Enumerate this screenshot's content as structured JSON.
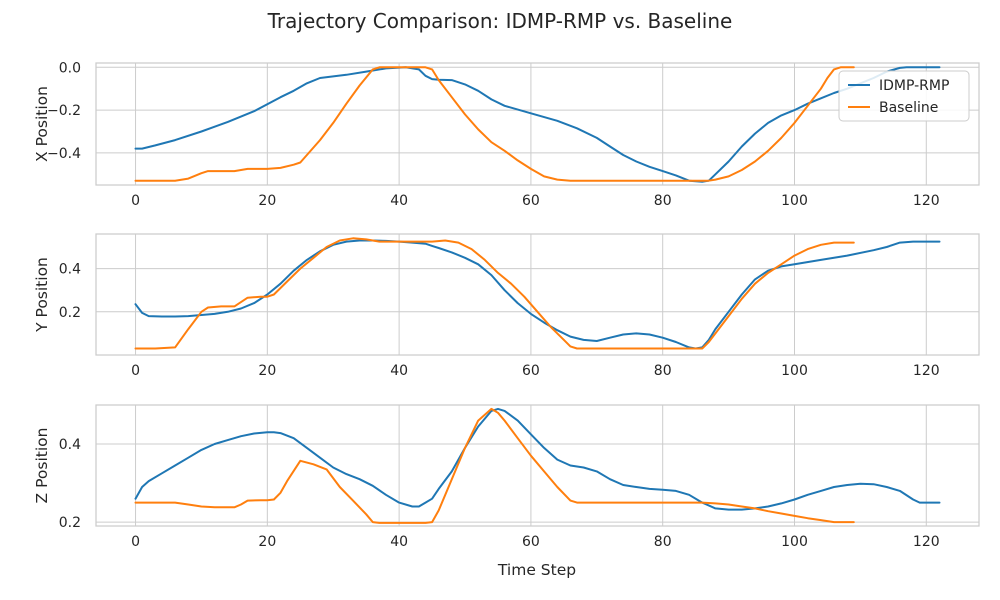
{
  "chart_data": {
    "type": "line",
    "title": "Trajectory Comparison: IDMP-RMP vs. Baseline",
    "xlabel": "Time Step",
    "xlim": [
      -6,
      128
    ],
    "xticks": [
      0,
      20,
      40,
      60,
      80,
      100,
      120
    ],
    "legend": {
      "placement": "top-right",
      "panel": 0
    },
    "colors": {
      "IDMP-RMP": "#1f77b4",
      "Baseline": "#ff7f0e"
    },
    "panels": [
      {
        "ylabel": "X Position",
        "ylim": [
          -0.55,
          0.02
        ],
        "yticks": [
          -0.4,
          -0.2,
          0.0
        ],
        "ytick_labels": [
          "−0.4",
          "−0.2",
          "0.0"
        ],
        "series": [
          {
            "name": "IDMP-RMP",
            "x": [
              0,
              1,
              3,
              6,
              10,
              14,
              18,
              22,
              24,
              26,
              28,
              32,
              35,
              38,
              41,
              43,
              44,
              45,
              46,
              48,
              50,
              52,
              54,
              56,
              60,
              64,
              67,
              70,
              72,
              74,
              76,
              78,
              80,
              82,
              84,
              86,
              87,
              88,
              90,
              92,
              94,
              96,
              98,
              100,
              102,
              104,
              106,
              108,
              110,
              112,
              114,
              116,
              117,
              118,
              120,
              122
            ],
            "y": [
              -0.38,
              -0.38,
              -0.365,
              -0.34,
              -0.3,
              -0.255,
              -0.205,
              -0.14,
              -0.11,
              -0.075,
              -0.05,
              -0.035,
              -0.02,
              -0.005,
              0.0,
              -0.01,
              -0.04,
              -0.055,
              -0.058,
              -0.06,
              -0.08,
              -0.11,
              -0.15,
              -0.18,
              -0.215,
              -0.25,
              -0.285,
              -0.33,
              -0.37,
              -0.41,
              -0.44,
              -0.465,
              -0.485,
              -0.505,
              -0.53,
              -0.535,
              -0.53,
              -0.5,
              -0.44,
              -0.37,
              -0.31,
              -0.26,
              -0.225,
              -0.2,
              -0.17,
              -0.145,
              -0.12,
              -0.1,
              -0.075,
              -0.05,
              -0.02,
              -0.003,
              0.0,
              0.0,
              0.0,
              0.0
            ]
          },
          {
            "name": "Baseline",
            "x": [
              0,
              3,
              6,
              8,
              10,
              11,
              13,
              15,
              17,
              20,
              22,
              24,
              25,
              26,
              28,
              30,
              32,
              34,
              36,
              37,
              38,
              40,
              42,
              44,
              45,
              46,
              48,
              50,
              52,
              54,
              56,
              58,
              60,
              62,
              64,
              66,
              68,
              70,
              80,
              85,
              87,
              88,
              90,
              92,
              94,
              96,
              98,
              100,
              102,
              104,
              105,
              106,
              107,
              108,
              109
            ],
            "y": [
              -0.53,
              -0.53,
              -0.53,
              -0.52,
              -0.495,
              -0.485,
              -0.485,
              -0.485,
              -0.475,
              -0.475,
              -0.47,
              -0.455,
              -0.445,
              -0.41,
              -0.34,
              -0.26,
              -0.17,
              -0.085,
              -0.01,
              0.0,
              0.0,
              0.0,
              0.0,
              0.0,
              -0.01,
              -0.06,
              -0.14,
              -0.22,
              -0.29,
              -0.35,
              -0.39,
              -0.435,
              -0.475,
              -0.51,
              -0.525,
              -0.53,
              -0.53,
              -0.53,
              -0.53,
              -0.53,
              -0.53,
              -0.525,
              -0.51,
              -0.48,
              -0.44,
              -0.39,
              -0.33,
              -0.26,
              -0.18,
              -0.1,
              -0.05,
              -0.01,
              0.0,
              0.0,
              0.0
            ]
          }
        ]
      },
      {
        "ylabel": "Y Position",
        "ylim": [
          0.0,
          0.56
        ],
        "yticks": [
          0.2,
          0.4
        ],
        "ytick_labels": [
          "0.2",
          "0.4"
        ],
        "series": [
          {
            "name": "IDMP-RMP",
            "x": [
              0,
              1,
              2,
              4,
              6,
              8,
              10,
              12,
              14,
              16,
              18,
              20,
              22,
              24,
              26,
              28,
              30,
              32,
              34,
              36,
              38,
              40,
              42,
              44,
              45,
              46,
              48,
              50,
              52,
              54,
              56,
              58,
              60,
              62,
              64,
              66,
              68,
              70,
              72,
              74,
              76,
              78,
              80,
              82,
              84,
              85,
              86,
              87,
              88,
              90,
              92,
              94,
              96,
              98,
              100,
              104,
              108,
              112,
              114,
              116,
              118,
              120,
              122
            ],
            "y": [
              0.235,
              0.195,
              0.18,
              0.178,
              0.178,
              0.18,
              0.185,
              0.19,
              0.2,
              0.215,
              0.24,
              0.28,
              0.33,
              0.39,
              0.44,
              0.48,
              0.51,
              0.525,
              0.53,
              0.53,
              0.528,
              0.525,
              0.52,
              0.515,
              0.505,
              0.495,
              0.475,
              0.45,
              0.42,
              0.37,
              0.3,
              0.24,
              0.19,
              0.15,
              0.115,
              0.085,
              0.07,
              0.065,
              0.08,
              0.095,
              0.1,
              0.095,
              0.08,
              0.06,
              0.035,
              0.03,
              0.035,
              0.07,
              0.12,
              0.2,
              0.28,
              0.35,
              0.39,
              0.41,
              0.42,
              0.44,
              0.46,
              0.485,
              0.5,
              0.52,
              0.525,
              0.525,
              0.525
            ]
          },
          {
            "name": "Baseline",
            "x": [
              0,
              3,
              6,
              8,
              10,
              11,
              13,
              15,
              17,
              19,
              20,
              21,
              23,
              25,
              27,
              29,
              31,
              33,
              35,
              37,
              39,
              41,
              43,
              45,
              47,
              49,
              51,
              53,
              55,
              57,
              59,
              61,
              63,
              65,
              66,
              67,
              70,
              80,
              86,
              87,
              88,
              90,
              92,
              94,
              96,
              98,
              100,
              102,
              104,
              106,
              108,
              109
            ],
            "y": [
              0.03,
              0.03,
              0.035,
              0.12,
              0.2,
              0.22,
              0.225,
              0.225,
              0.265,
              0.27,
              0.27,
              0.28,
              0.34,
              0.4,
              0.45,
              0.5,
              0.53,
              0.54,
              0.535,
              0.525,
              0.525,
              0.525,
              0.525,
              0.525,
              0.53,
              0.52,
              0.49,
              0.44,
              0.38,
              0.33,
              0.27,
              0.2,
              0.13,
              0.07,
              0.04,
              0.03,
              0.03,
              0.03,
              0.03,
              0.06,
              0.1,
              0.18,
              0.26,
              0.33,
              0.38,
              0.42,
              0.46,
              0.49,
              0.51,
              0.52,
              0.52,
              0.52
            ]
          }
        ]
      },
      {
        "ylabel": "Z Position",
        "ylim": [
          0.19,
          0.5
        ],
        "yticks": [
          0.2,
          0.4
        ],
        "ytick_labels": [
          "0.2",
          "0.4"
        ],
        "series": [
          {
            "name": "IDMP-RMP",
            "x": [
              0,
              1,
              2,
              4,
              6,
              8,
              10,
              12,
              14,
              16,
              18,
              20,
              21,
              22,
              24,
              26,
              28,
              30,
              32,
              34,
              36,
              38,
              40,
              42,
              43,
              44,
              45,
              46,
              48,
              50,
              52,
              54,
              55,
              56,
              58,
              60,
              62,
              64,
              66,
              68,
              70,
              72,
              74,
              76,
              78,
              80,
              82,
              84,
              86,
              88,
              90,
              92,
              94,
              96,
              98,
              100,
              102,
              104,
              106,
              108,
              110,
              112,
              114,
              116,
              118,
              119,
              120,
              122
            ],
            "y": [
              0.26,
              0.29,
              0.305,
              0.325,
              0.345,
              0.365,
              0.385,
              0.4,
              0.41,
              0.42,
              0.427,
              0.43,
              0.43,
              0.428,
              0.415,
              0.39,
              0.365,
              0.34,
              0.323,
              0.31,
              0.293,
              0.27,
              0.25,
              0.24,
              0.24,
              0.25,
              0.26,
              0.285,
              0.33,
              0.39,
              0.445,
              0.485,
              0.49,
              0.485,
              0.46,
              0.425,
              0.39,
              0.36,
              0.345,
              0.34,
              0.33,
              0.31,
              0.295,
              0.29,
              0.285,
              0.283,
              0.28,
              0.27,
              0.25,
              0.235,
              0.232,
              0.232,
              0.235,
              0.24,
              0.248,
              0.258,
              0.27,
              0.28,
              0.29,
              0.295,
              0.298,
              0.297,
              0.29,
              0.28,
              0.258,
              0.25,
              0.25,
              0.25
            ]
          },
          {
            "name": "Baseline",
            "x": [
              0,
              3,
              6,
              8,
              10,
              12,
              15,
              16,
              17,
              19,
              20,
              21,
              22,
              23,
              25,
              27,
              29,
              31,
              33,
              35,
              36,
              37,
              40,
              44,
              45,
              46,
              48,
              50,
              52,
              54,
              55,
              56,
              58,
              60,
              62,
              64,
              66,
              67,
              70,
              80,
              86,
              88,
              90,
              92,
              94,
              96,
              98,
              100,
              102,
              104,
              106,
              109
            ],
            "y": [
              0.25,
              0.25,
              0.25,
              0.245,
              0.24,
              0.238,
              0.238,
              0.245,
              0.255,
              0.256,
              0.256,
              0.258,
              0.275,
              0.305,
              0.357,
              0.348,
              0.335,
              0.29,
              0.255,
              0.22,
              0.2,
              0.198,
              0.198,
              0.198,
              0.2,
              0.23,
              0.31,
              0.39,
              0.46,
              0.49,
              0.48,
              0.46,
              0.415,
              0.37,
              0.33,
              0.29,
              0.255,
              0.25,
              0.25,
              0.25,
              0.25,
              0.248,
              0.245,
              0.24,
              0.235,
              0.228,
              0.222,
              0.216,
              0.21,
              0.205,
              0.2,
              0.2
            ]
          }
        ]
      }
    ]
  }
}
